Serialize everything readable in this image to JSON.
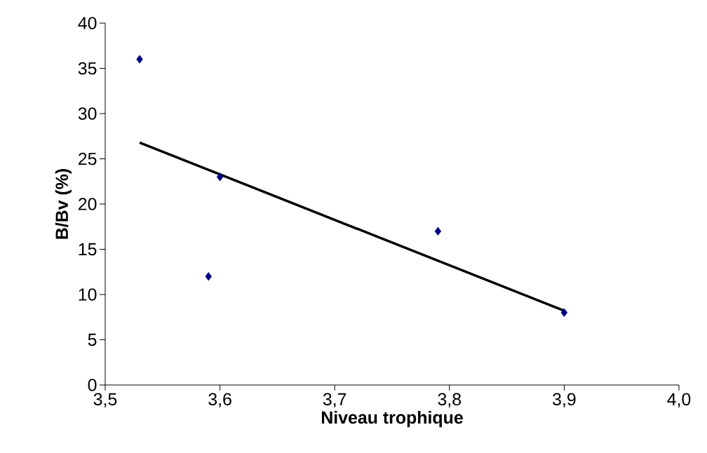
{
  "chart_data": {
    "type": "scatter",
    "xlabel": "Niveau trophique",
    "ylabel": "B/Bv (%)",
    "xlim": [
      3.5,
      4.0
    ],
    "ylim": [
      0,
      40
    ],
    "xticks": [
      {
        "value": 3.5,
        "label": "3,5"
      },
      {
        "value": 3.6,
        "label": "3,6"
      },
      {
        "value": 3.7,
        "label": "3,7"
      },
      {
        "value": 3.8,
        "label": "3,8"
      },
      {
        "value": 3.9,
        "label": "3,9"
      },
      {
        "value": 4.0,
        "label": "4,0"
      }
    ],
    "yticks": [
      0,
      5,
      10,
      15,
      20,
      25,
      30,
      35,
      40
    ],
    "marker": "diamond",
    "series": [
      {
        "color": "#000080",
        "x": [
          3.53,
          3.59,
          3.6,
          3.79,
          3.9
        ],
        "values": [
          36,
          12,
          23,
          17,
          8
        ]
      },
      {
        "type": "line",
        "color": "#000000",
        "marker": "none",
        "line_style": "solid",
        "x": [
          3.53,
          3.9
        ],
        "values": [
          26.8,
          8.2
        ]
      }
    ]
  }
}
